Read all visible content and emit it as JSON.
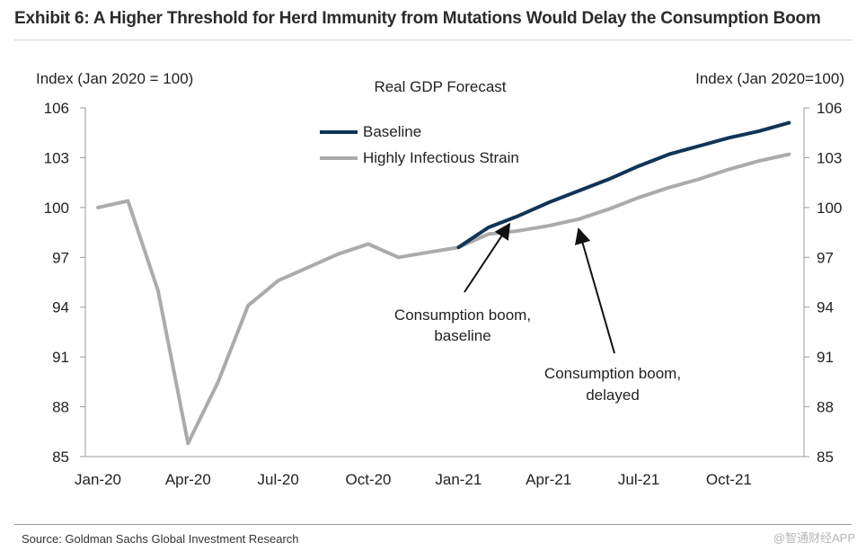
{
  "header": {
    "title": "Exhibit 6: A Higher Threshold for Herd Immunity from Mutations Would Delay the Consumption Boom"
  },
  "footer": {
    "source": "Source: Goldman Sachs Global Investment Research",
    "watermark": "@智通财经APP"
  },
  "chart_data": {
    "type": "line",
    "title": "Real GDP Forecast",
    "ylabel_left": "Index (Jan 2020 = 100)",
    "ylabel_right": "Index (Jan 2020=100)",
    "xlabel": "",
    "ylim": [
      85,
      106
    ],
    "yticks": [
      85,
      88,
      91,
      94,
      97,
      100,
      103,
      106
    ],
    "xlim": [
      0,
      23.5
    ],
    "xticks": [
      {
        "x": 0,
        "label": "Jan-20"
      },
      {
        "x": 3,
        "label": "Apr-20"
      },
      {
        "x": 6,
        "label": "Jul-20"
      },
      {
        "x": 9,
        "label": "Oct-20"
      },
      {
        "x": 12,
        "label": "Jan-21"
      },
      {
        "x": 15,
        "label": "Apr-21"
      },
      {
        "x": 18,
        "label": "Jul-21"
      },
      {
        "x": 21,
        "label": "Oct-21"
      }
    ],
    "legend": [
      "Baseline",
      "Highly Infectious Strain"
    ],
    "series": [
      {
        "name": "Baseline",
        "color": "#0f3556",
        "x": [
          12,
          13,
          14,
          15,
          16,
          17,
          18,
          19,
          20,
          21,
          22,
          23
        ],
        "y": [
          97.6,
          98.8,
          99.5,
          100.3,
          101.0,
          101.7,
          102.5,
          103.2,
          103.7,
          104.2,
          104.6,
          105.1
        ]
      },
      {
        "name": "Highly Infectious Strain",
        "color": "#ababab",
        "x": [
          0,
          1,
          2,
          3,
          4,
          5,
          6,
          7,
          8,
          9,
          10,
          11,
          12,
          13,
          14,
          15,
          16,
          17,
          18,
          19,
          20,
          21,
          22,
          23
        ],
        "y": [
          100.0,
          100.4,
          95.0,
          85.8,
          89.5,
          94.1,
          95.6,
          96.4,
          97.2,
          97.8,
          97.0,
          97.3,
          97.6,
          98.4,
          98.6,
          98.9,
          99.3,
          99.9,
          100.6,
          101.2,
          101.7,
          102.3,
          102.8,
          103.2
        ]
      }
    ],
    "annotations": [
      {
        "lines": [
          "Consumption boom,",
          "baseline"
        ],
        "target": {
          "x": 13.7,
          "y": 99.0
        }
      },
      {
        "lines": [
          "Consumption boom,",
          "delayed"
        ],
        "target": {
          "x": 16.0,
          "y": 98.7
        }
      }
    ]
  }
}
